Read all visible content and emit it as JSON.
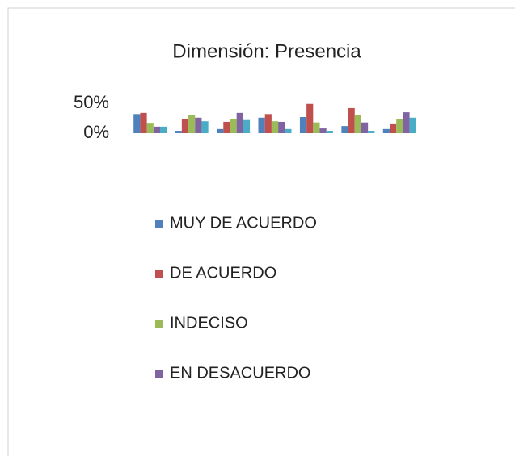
{
  "chart_data": {
    "type": "bar",
    "title": "Dimensión: Presencia",
    "categories": [
      null,
      null,
      null,
      null,
      null,
      null,
      null
    ],
    "series": [
      {
        "name": "MUY DE ACUERDO",
        "color": "#4f81bd",
        "values": [
          32,
          4,
          7,
          26,
          27,
          12,
          7
        ]
      },
      {
        "name": "DE ACUERDO",
        "color": "#c0504d",
        "values": [
          34,
          24,
          19,
          32,
          49,
          42,
          15
        ]
      },
      {
        "name": "INDECISO",
        "color": "#9bbb59",
        "values": [
          16,
          31,
          24,
          20,
          18,
          30,
          23
        ]
      },
      {
        "name": "EN DESACUERDO",
        "color": "#8064a2",
        "values": [
          11,
          26,
          34,
          19,
          8,
          18,
          35
        ]
      },
      {
        "color": "#4bacc6",
        "values": [
          11,
          20,
          22,
          7,
          4,
          4,
          26
        ]
      }
    ],
    "ylim": [
      0,
      50
    ],
    "yticks": [
      {
        "value": 0,
        "label": "0%"
      },
      {
        "value": 50,
        "label": "50%"
      }
    ],
    "grid": false,
    "legend": "bottom"
  }
}
